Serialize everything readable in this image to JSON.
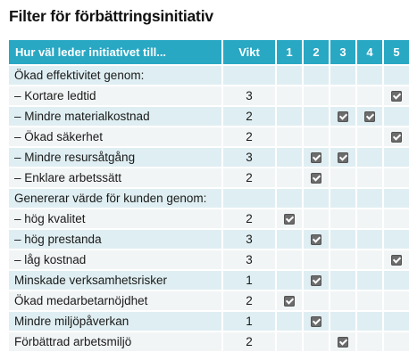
{
  "title": "Filter för förbättringsinitiativ",
  "columns": {
    "name": "Hur väl leder initiativet till...",
    "weight": "Vikt",
    "scores": [
      "1",
      "2",
      "3",
      "4",
      "5"
    ]
  },
  "rows": [
    {
      "label": "Ökad effektivitet genom:",
      "weight": "",
      "checked": []
    },
    {
      "label": "– Kortare ledtid",
      "weight": "3",
      "checked": [
        5
      ]
    },
    {
      "label": "– Mindre materialkostnad",
      "weight": "2",
      "checked": [
        3,
        4
      ]
    },
    {
      "label": "– Ökad säkerhet",
      "weight": "2",
      "checked": [
        5
      ]
    },
    {
      "label": "– Mindre resursåtgång",
      "weight": "3",
      "checked": [
        2,
        3
      ]
    },
    {
      "label": "– Enklare arbetssätt",
      "weight": "2",
      "checked": [
        2
      ]
    },
    {
      "label": "Genererar värde för kunden genom:",
      "weight": "",
      "checked": []
    },
    {
      "label": "– hög kvalitet",
      "weight": "2",
      "checked": [
        1
      ]
    },
    {
      "label": "– hög prestanda",
      "weight": "3",
      "checked": [
        2
      ]
    },
    {
      "label": "– låg kostnad",
      "weight": "3",
      "checked": [
        5
      ]
    },
    {
      "label": "Minskade verksamhetsrisker",
      "weight": "1",
      "checked": [
        2
      ]
    },
    {
      "label": "Ökad medarbetarnöjdhet",
      "weight": "2",
      "checked": [
        1
      ]
    },
    {
      "label": "Mindre miljöpåverkan",
      "weight": "1",
      "checked": [
        2
      ]
    },
    {
      "label": "Förbättrad arbetsmiljö",
      "weight": "2",
      "checked": [
        3
      ]
    }
  ],
  "colors": {
    "header_bg": "#29a8c4",
    "row_odd_bg": "#dfeef2",
    "row_even_bg": "#f2f5f6",
    "checkbox": "#6c6c6c"
  }
}
